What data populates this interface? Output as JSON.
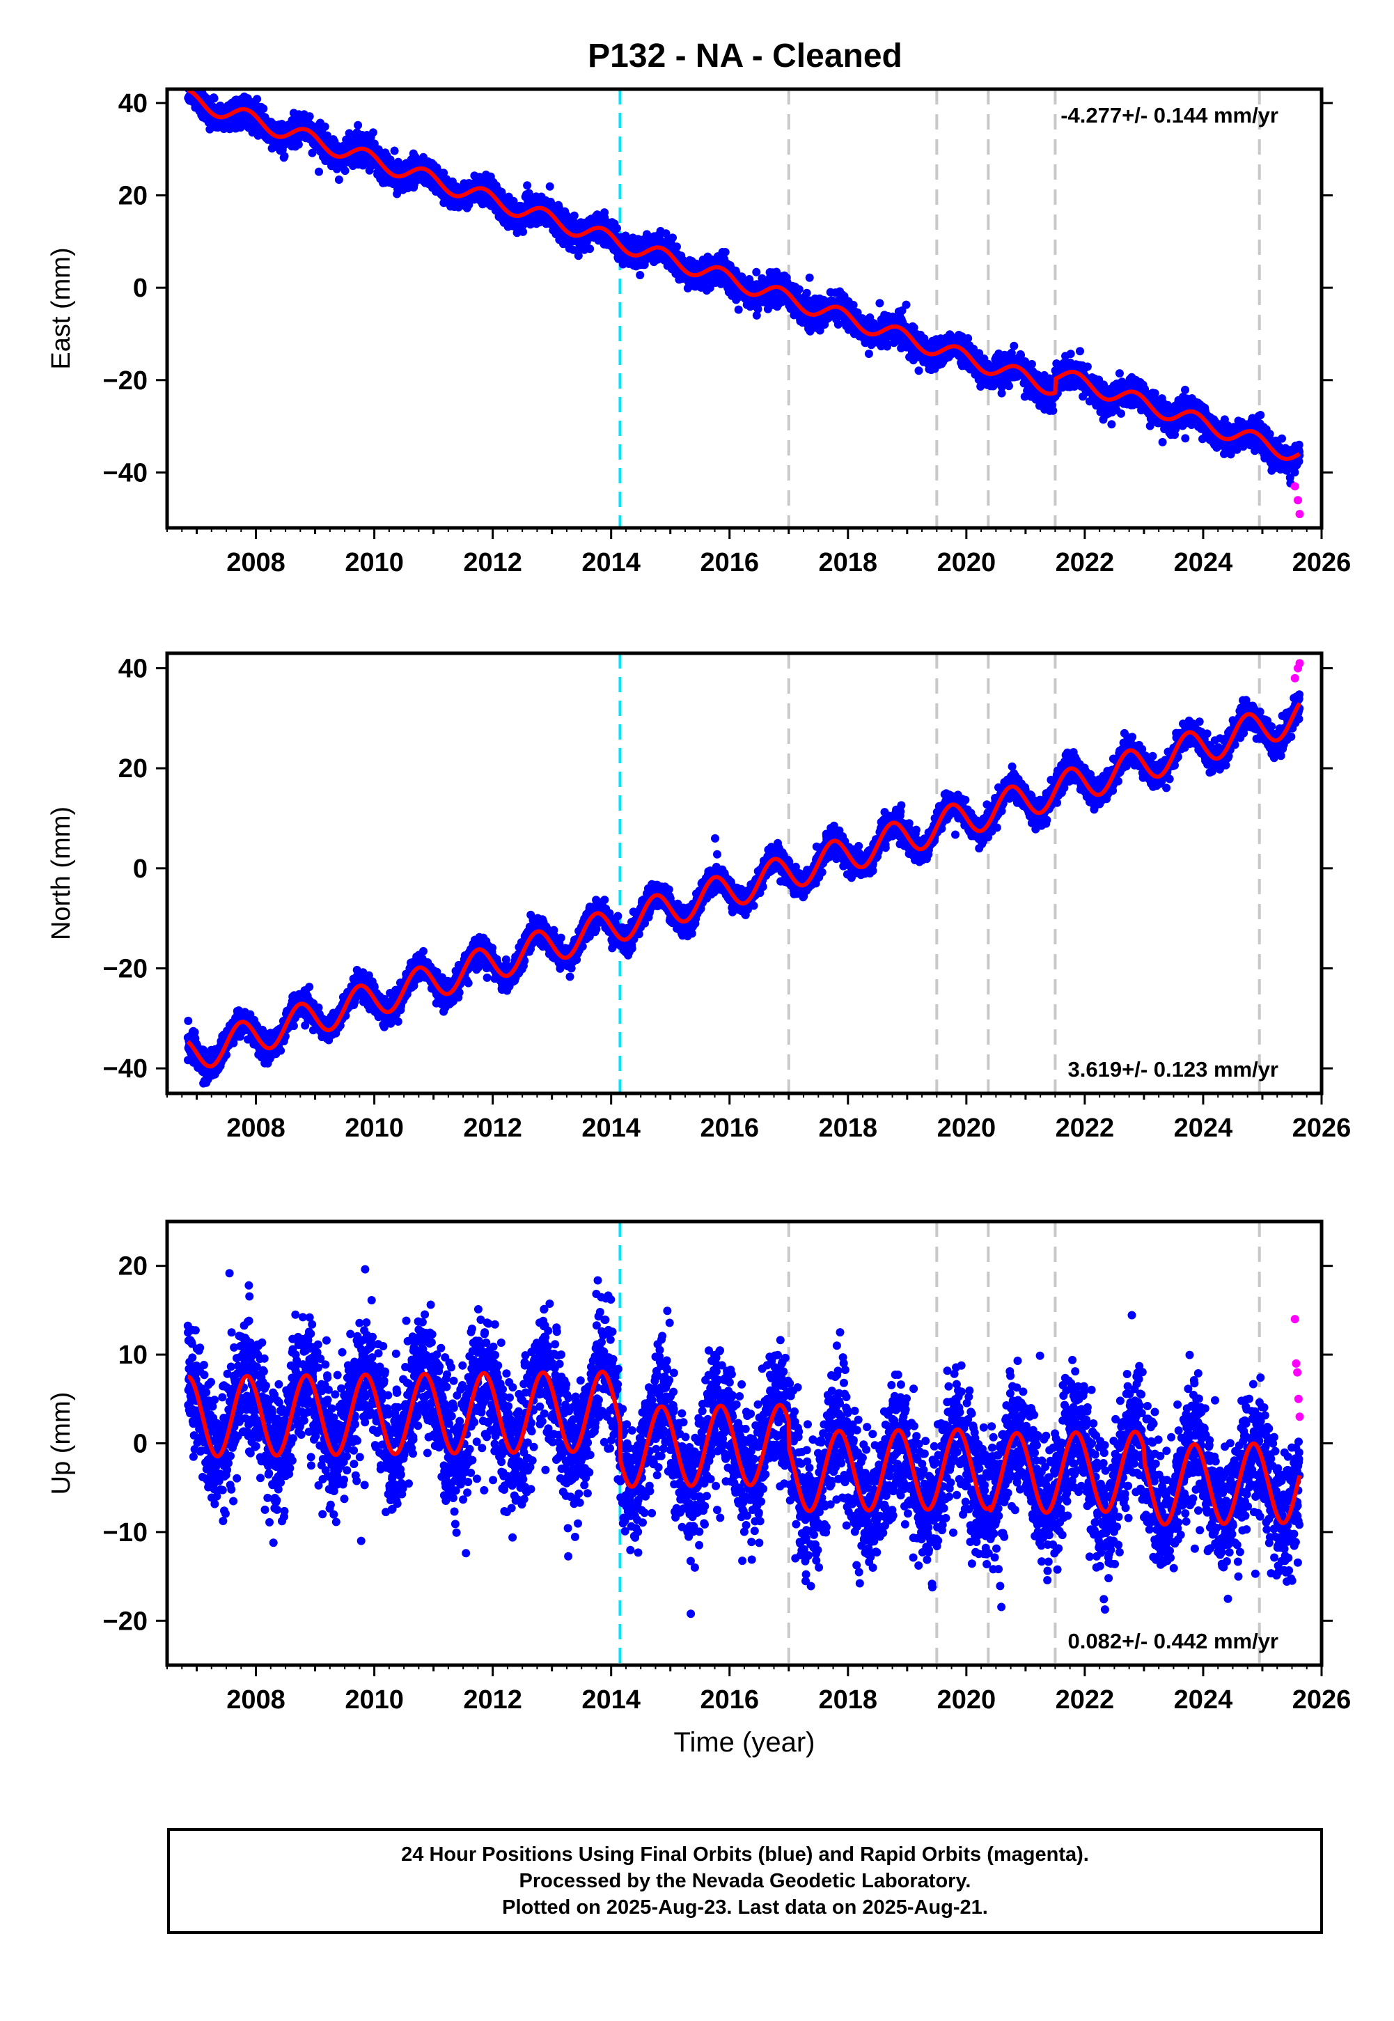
{
  "title": "P132  - NA - Cleaned",
  "footer": {
    "line1": "24 Hour Positions Using Final Orbits (blue) and Rapid Orbits (magenta).",
    "line2": "Processed by the Nevada Geodetic Laboratory.",
    "line3": "Plotted on 2025-Aug-23. Last data on 2025-Aug-21."
  },
  "colors": {
    "final_points": "#0000ff",
    "rapid_points": "#ff00ff",
    "model": "#ff0000",
    "offset_line": "#c8c8c8",
    "equipment_line": "#00e5ff"
  },
  "chart_data": [
    {
      "type": "scatter",
      "name": "east",
      "xlabel": "",
      "ylabel": "East (mm)",
      "xlim": [
        2006.5,
        2026.0
      ],
      "ylim": [
        -52,
        43
      ],
      "x_ticks": [
        2008,
        2010,
        2012,
        2014,
        2016,
        2018,
        2020,
        2022,
        2024,
        2026
      ],
      "y_ticks": [
        40,
        20,
        0,
        -20,
        -40
      ],
      "velocity_label": "-4.277+/- 0.144 mm/yr",
      "velocity_label_position": "top-right",
      "model": {
        "start": 2006.85,
        "end": 2025.63,
        "v0": 41.0,
        "rate": -4.277,
        "amp": 1.8,
        "phase": 0.6
      },
      "breaks": [
        {
          "x": 2021.5,
          "dv": 3.0
        }
      ],
      "scatter_noise_mm": 1.5,
      "rapid_values": {
        "x": [
          2025.55,
          2025.6,
          2025.63
        ],
        "y": [
          -43,
          -46,
          -49
        ]
      }
    },
    {
      "type": "scatter",
      "name": "north",
      "xlabel": "",
      "ylabel": "North (mm)",
      "xlim": [
        2006.5,
        2026.0
      ],
      "ylim": [
        -45,
        43
      ],
      "x_ticks": [
        2008,
        2010,
        2012,
        2014,
        2016,
        2018,
        2020,
        2022,
        2024,
        2026
      ],
      "y_ticks": [
        40,
        20,
        0,
        -20,
        -40
      ],
      "velocity_label": "3.619+/- 0.123 mm/yr",
      "velocity_label_position": "bottom-right",
      "model": {
        "start": 2006.85,
        "end": 2025.63,
        "v0": -37.5,
        "rate": 3.619,
        "amp": 3.5,
        "phase": 0.5
      },
      "breaks": [],
      "scatter_noise_mm": 1.3,
      "rapid_values": {
        "x": [
          2025.55,
          2025.6,
          2025.63
        ],
        "y": [
          38,
          40,
          41
        ]
      }
    },
    {
      "type": "scatter",
      "name": "up",
      "xlabel": "Time (year)",
      "ylabel": "Up (mm)",
      "xlim": [
        2006.5,
        2026.0
      ],
      "ylim": [
        -25,
        25
      ],
      "x_ticks": [
        2008,
        2010,
        2012,
        2014,
        2016,
        2018,
        2020,
        2022,
        2024,
        2026
      ],
      "y_ticks": [
        20,
        10,
        0,
        -10,
        -20
      ],
      "velocity_label": "0.082+/- 0.442 mm/yr",
      "velocity_label_position": "bottom-right",
      "model": {
        "start": 2006.85,
        "end": 2025.63,
        "v0": 3.0,
        "rate": 0.082,
        "amp": 4.5,
        "phase": 0.6
      },
      "breaks": [
        {
          "x": 2014.15,
          "dv": -4.0
        },
        {
          "x": 2017.0,
          "dv": -3.0
        },
        {
          "x": 2020.4,
          "dv": -0.5
        },
        {
          "x": 2023.0,
          "dv": -1.5
        }
      ],
      "scatter_noise_mm": 3.6,
      "rapid_values": {
        "x": [
          2025.55,
          2025.57,
          2025.59,
          2025.61,
          2025.63
        ],
        "y": [
          14,
          9,
          8,
          5,
          3
        ]
      }
    }
  ],
  "vertical_lines": {
    "equipment": [
      2014.15
    ],
    "offsets": [
      2017.0,
      2019.5,
      2020.37,
      2021.5,
      2024.95
    ]
  }
}
